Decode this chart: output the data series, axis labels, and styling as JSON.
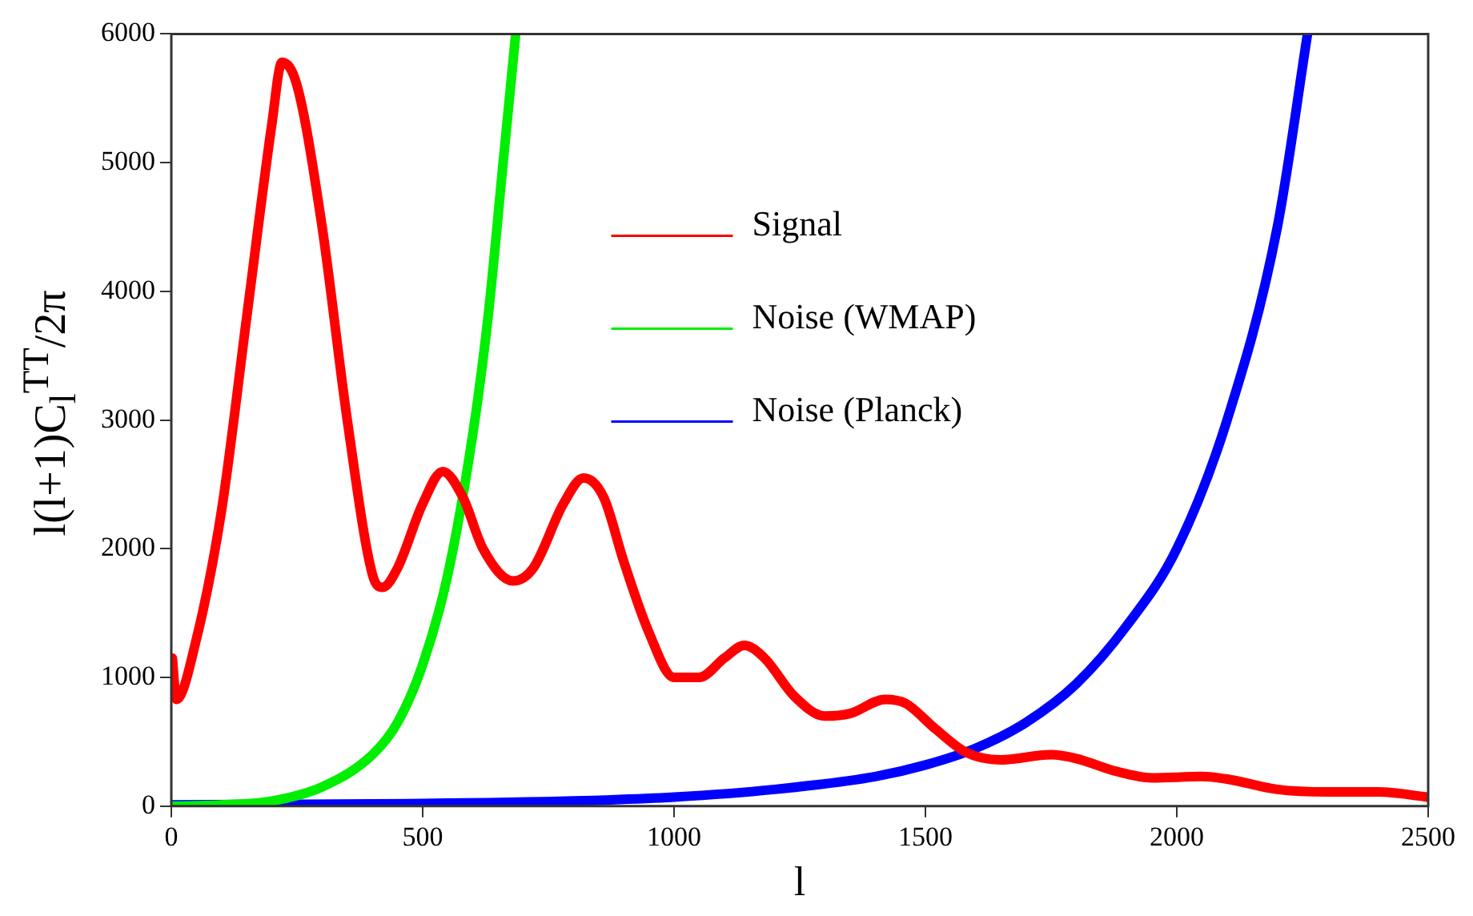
{
  "chart_data": {
    "type": "line",
    "xlabel": "l",
    "ylabel": "l(l+1)C$_{l}$$^{TT}$/2π",
    "xlim": [
      0,
      2500
    ],
    "ylim": [
      0,
      6000
    ],
    "xticks": [
      0,
      500,
      1000,
      1500,
      2000,
      2500
    ],
    "yticks": [
      0,
      1000,
      2000,
      3000,
      4000,
      5000,
      6000
    ],
    "grid": false,
    "legend": "top",
    "marker": "none",
    "line_style": "solid",
    "series": [
      {
        "name": "Signal",
        "color": "#ff0000",
        "x": [
          2,
          10,
          50,
          100,
          150,
          200,
          220,
          250,
          300,
          350,
          400,
          420,
          450,
          500,
          540,
          580,
          620,
          680,
          720,
          780,
          820,
          860,
          900,
          950,
          1000,
          1050,
          1100,
          1140,
          1180,
          1240,
          1300,
          1350,
          1420,
          1460,
          1520,
          1580,
          1650,
          1750,
          1800,
          1880,
          1950,
          2050,
          2100,
          2200,
          2300,
          2400,
          2500
        ],
        "values": [
          1150,
          830,
          1300,
          2300,
          3800,
          5300,
          5780,
          5600,
          4500,
          3000,
          1800,
          1700,
          1850,
          2350,
          2600,
          2400,
          2000,
          1750,
          1850,
          2350,
          2550,
          2400,
          1900,
          1350,
          1000,
          1000,
          1150,
          1250,
          1150,
          850,
          700,
          720,
          830,
          800,
          600,
          420,
          360,
          400,
          370,
          270,
          220,
          230,
          210,
          130,
          110,
          110,
          70
        ]
      },
      {
        "name": "Noise (WMAP)",
        "color": "#00ee00",
        "x": [
          0,
          100,
          200,
          300,
          400,
          450,
          500,
          550,
          600,
          630,
          660,
          685
        ],
        "values": [
          0,
          10,
          40,
          150,
          400,
          650,
          1100,
          1800,
          2900,
          3800,
          5000,
          6000
        ]
      },
      {
        "name": "Noise (Planck)",
        "color": "#0000ff",
        "x": [
          0,
          500,
          800,
          1000,
          1200,
          1400,
          1500,
          1600,
          1700,
          1800,
          1900,
          2000,
          2100,
          2200,
          2260
        ],
        "values": [
          10,
          20,
          40,
          70,
          130,
          230,
          320,
          450,
          650,
          950,
          1400,
          2000,
          3000,
          4500,
          6000
        ]
      }
    ]
  }
}
